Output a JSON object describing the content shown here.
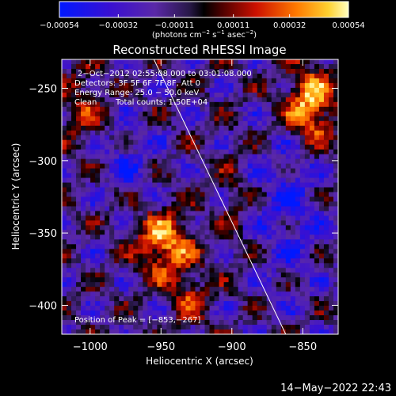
{
  "chart_data": {
    "type": "heatmap",
    "title": "Reconstructed RHESSI Image",
    "xlabel": "Heliocentric X (arcsec)",
    "ylabel": "Heliocentric Y (arcsec)",
    "xlim": [
      -1020,
      -825
    ],
    "ylim": [
      -420,
      -230
    ],
    "x_ticks": [
      -1000,
      -950,
      -900,
      -850
    ],
    "x_tick_labels": [
      "−1000",
      "−950",
      "−900",
      "−850"
    ],
    "y_ticks": [
      -400,
      -350,
      -300,
      -250
    ],
    "y_tick_labels": [
      "−400",
      "−350",
      "−300",
      "−250"
    ],
    "colorbar": {
      "range": [
        -0.00054,
        0.00054
      ],
      "ticks": [
        -0.00054,
        -0.00032,
        -0.00011,
        0.00011,
        0.00032,
        0.00054
      ],
      "tick_labels": [
        "−0.00054",
        "−0.00032",
        "−0.00011",
        "0.00011",
        "0.00032",
        "0.00054"
      ],
      "units_text": "(photons cm",
      "units_exp1": "−2",
      "units_mid": " s",
      "units_exp2": "−1",
      "units_mid2": " asec",
      "units_exp3": "−2",
      "units_end": ")"
    },
    "annotations": {
      "time_range": "2−Oct−2012 02:55:08.000 to 03:01:08.000",
      "detectors": "Detectors: 3F 5F 6F 7F 8F, Att 0",
      "energy": "Energy Range: 25.0 − 50.0 keV",
      "clean": "Clean",
      "total_counts": "Total counts: 1.50E+04",
      "peak": "Position of Peak = [−853,−267]"
    },
    "limb_line": {
      "x": [
        -955,
        -862
      ],
      "y": [
        -230,
        -420
      ]
    },
    "emission_regions": [
      {
        "name": "upper-right source",
        "x": -845,
        "y": -262,
        "intensity": 0.00054
      },
      {
        "name": "lower-left source",
        "x": -947,
        "y": -358,
        "intensity": 0.00047
      }
    ]
  },
  "footer": {
    "timestamp": "14−May−2022 22:43"
  },
  "colors": {
    "background": "#000000",
    "axes": "#ffffff",
    "limb": "#ffffff"
  }
}
